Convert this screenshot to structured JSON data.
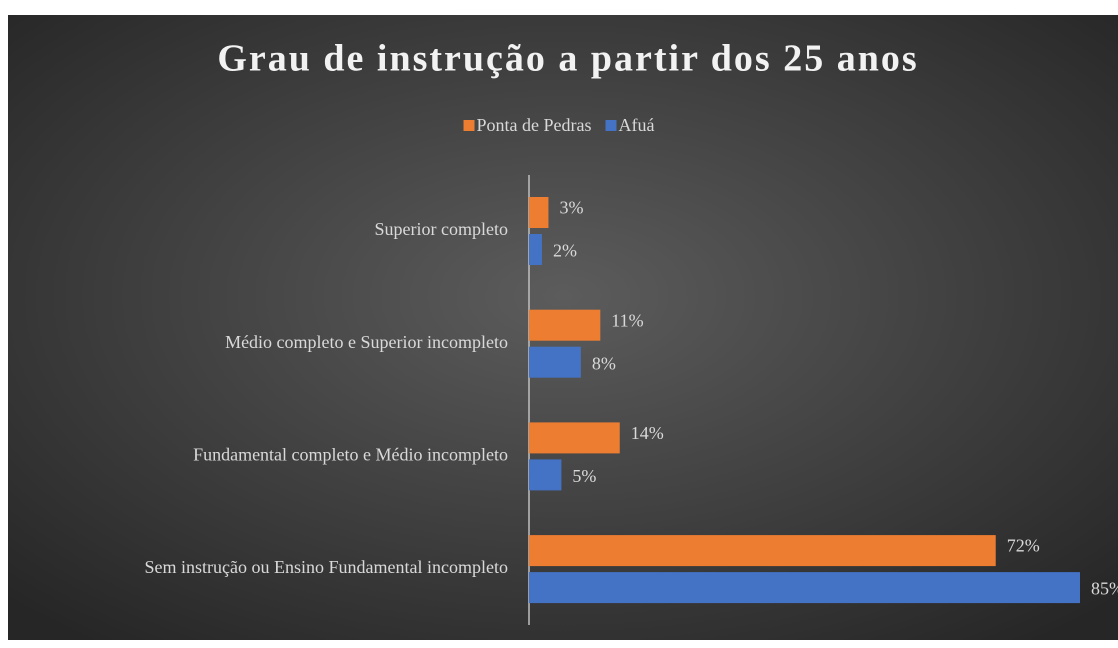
{
  "chart_data": {
    "type": "bar",
    "orientation": "horizontal",
    "title": "Grau de instrução a partir dos 25 anos",
    "categories": [
      "Superior completo",
      "Médio completo e Superior incompleto",
      "Fundamental completo e Médio incompleto",
      "Sem instrução ou Ensino Fundamental incompleto"
    ],
    "series": [
      {
        "name": "Ponta de Pedras",
        "color": "#ed7d31",
        "values": [
          3,
          11,
          14,
          72
        ],
        "value_labels": [
          "3%",
          "11%",
          "14%",
          "72%"
        ]
      },
      {
        "name": "Afuá",
        "color": "#4472c4",
        "values": [
          2,
          8,
          5,
          85
        ],
        "value_labels": [
          "2%",
          "8%",
          "5%",
          "85%"
        ]
      }
    ],
    "legend": "top",
    "grid": false
  }
}
